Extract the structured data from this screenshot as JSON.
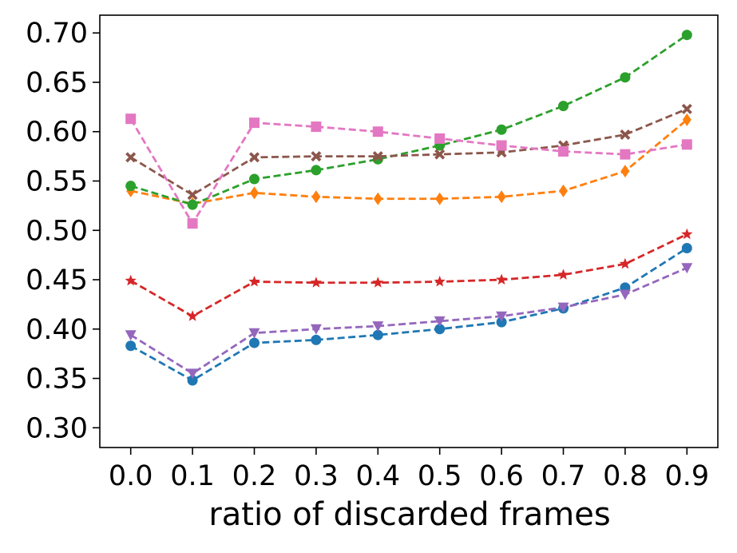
{
  "chart_data": {
    "type": "line",
    "title": "",
    "xlabel": "ratio of discarded frames",
    "ylabel": "",
    "x": [
      0.0,
      0.1,
      0.2,
      0.3,
      0.4,
      0.5,
      0.6,
      0.7,
      0.8,
      0.9
    ],
    "x_tick_labels": [
      "0.0",
      "0.1",
      "0.2",
      "0.3",
      "0.4",
      "0.5",
      "0.6",
      "0.7",
      "0.8",
      "0.9"
    ],
    "y_ticks": [
      0.3,
      0.35,
      0.4,
      0.45,
      0.5,
      0.55,
      0.6,
      0.65,
      0.7
    ],
    "y_tick_labels": [
      "0.30",
      "0.35",
      "0.40",
      "0.45",
      "0.50",
      "0.55",
      "0.60",
      "0.65",
      "0.70"
    ],
    "xlim": [
      -0.05,
      0.95
    ],
    "ylim": [
      0.28,
      0.718
    ],
    "grid": false,
    "legend": "none",
    "line_style": "dashed",
    "series": [
      {
        "color": "#1f77b4",
        "marker": "circle",
        "values": [
          0.383,
          0.348,
          0.386,
          0.389,
          0.394,
          0.4,
          0.407,
          0.421,
          0.442,
          0.482
        ]
      },
      {
        "color": "#ff7f0e",
        "marker": "diamond",
        "values": [
          0.54,
          0.527,
          0.538,
          0.534,
          0.532,
          0.532,
          0.534,
          0.54,
          0.56,
          0.612
        ]
      },
      {
        "color": "#2ca02c",
        "marker": "circle",
        "values": [
          0.545,
          0.526,
          0.552,
          0.561,
          0.572,
          0.586,
          0.602,
          0.626,
          0.655,
          0.698
        ]
      },
      {
        "color": "#d62728",
        "marker": "star",
        "values": [
          0.449,
          0.413,
          0.448,
          0.447,
          0.447,
          0.448,
          0.45,
          0.455,
          0.466,
          0.496
        ]
      },
      {
        "color": "#9467bd",
        "marker": "triangle-down",
        "values": [
          0.394,
          0.355,
          0.396,
          0.4,
          0.403,
          0.408,
          0.413,
          0.422,
          0.435,
          0.462
        ]
      },
      {
        "color": "#8c564b",
        "marker": "x",
        "values": [
          0.574,
          0.536,
          0.574,
          0.575,
          0.575,
          0.577,
          0.579,
          0.586,
          0.597,
          0.623
        ]
      },
      {
        "color": "#e377c2",
        "marker": "square",
        "values": [
          0.613,
          0.507,
          0.609,
          0.605,
          0.6,
          0.593,
          0.586,
          0.58,
          0.577,
          0.587
        ]
      }
    ]
  }
}
